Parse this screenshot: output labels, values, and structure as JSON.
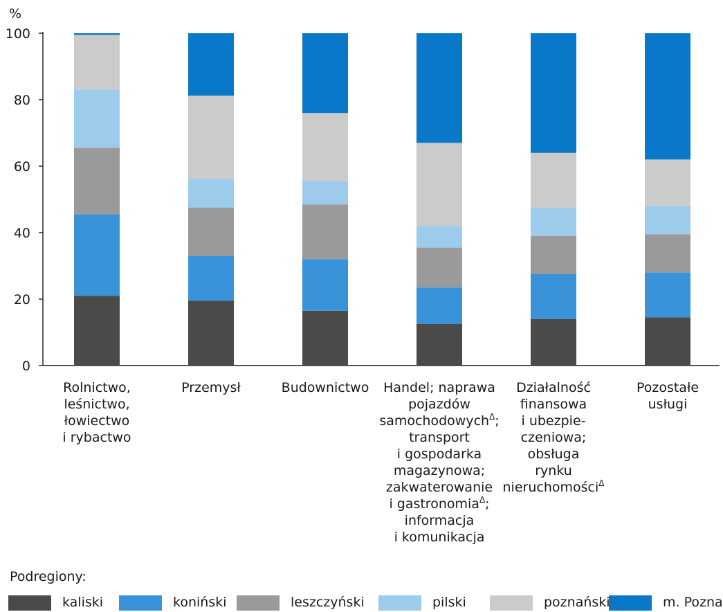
{
  "chart_data": {
    "type": "bar",
    "stacked": true,
    "ylabel": "%",
    "ylim": [
      0,
      100
    ],
    "yticks": [
      0,
      20,
      40,
      60,
      80,
      100
    ],
    "grid": false,
    "legend_position": "bottom",
    "legend_title": "Podregiony:",
    "categories": [
      [
        "Rolnictwo,",
        "leśnictwo,",
        "łowiectwo",
        "i rybactwo"
      ],
      [
        "Przemysł"
      ],
      [
        "Budownictwo"
      ],
      [
        "Handel; naprawa",
        "pojazdów",
        "samochodowych^Δ;",
        "transport",
        "i gospodarka",
        "magazynowa;",
        "zakwaterowanie",
        "i gastronomia^Δ;",
        "informacja",
        "i komunikacja"
      ],
      [
        "Działalność",
        "finansowa",
        "i ubezpie-",
        "czeniowa;",
        "obsługa",
        "rynku",
        "nieruchomości^Δ"
      ],
      [
        "Pozostałe",
        "usługi"
      ]
    ],
    "series": [
      {
        "name": "kaliski",
        "color": "#4a4a4a",
        "values": [
          21.0,
          19.5,
          16.5,
          12.5,
          14.0,
          14.5
        ]
      },
      {
        "name": "koniński",
        "color": "#3a93d8",
        "values": [
          24.5,
          13.5,
          15.5,
          11.0,
          13.5,
          13.5
        ]
      },
      {
        "name": "leszczyński",
        "color": "#9a9a9a",
        "values": [
          20.0,
          14.5,
          16.5,
          12.0,
          11.5,
          11.5
        ]
      },
      {
        "name": "pilski",
        "color": "#9dcbec",
        "values": [
          17.5,
          8.7,
          7.0,
          6.5,
          8.5,
          8.5
        ]
      },
      {
        "name": "poznański",
        "color": "#cbcbcb",
        "values": [
          16.5,
          25.0,
          20.5,
          25.0,
          16.5,
          14.0
        ]
      },
      {
        "name": "m. Poznań",
        "color": "#0a78c8",
        "values": [
          0.5,
          18.8,
          24.0,
          33.0,
          36.0,
          38.0
        ]
      }
    ]
  }
}
